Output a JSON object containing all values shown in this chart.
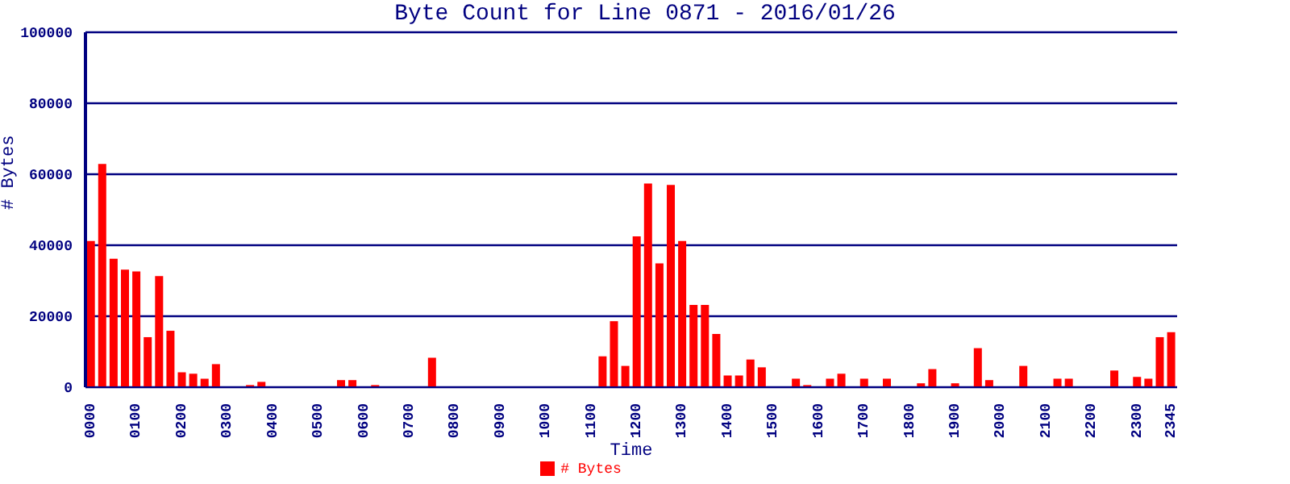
{
  "chart_data": {
    "type": "bar",
    "title": "Byte Count for Line 0871 - 2016/01/26",
    "xlabel": "Time",
    "ylabel": "# Bytes",
    "categories": [
      "0000",
      null,
      null,
      null,
      "0100",
      null,
      null,
      null,
      "0200",
      null,
      null,
      null,
      "0300",
      null,
      null,
      null,
      "0400",
      null,
      null,
      null,
      "0500",
      null,
      null,
      null,
      "0600",
      null,
      null,
      null,
      "0700",
      null,
      null,
      null,
      "0800",
      null,
      null,
      null,
      "0900",
      null,
      null,
      null,
      "1000",
      null,
      null,
      null,
      "1100",
      null,
      null,
      null,
      "1200",
      null,
      null,
      null,
      "1300",
      null,
      null,
      null,
      "1400",
      null,
      null,
      null,
      "1500",
      null,
      null,
      null,
      "1600",
      null,
      null,
      null,
      "1700",
      null,
      null,
      null,
      "1800",
      null,
      null,
      null,
      "1900",
      null,
      null,
      null,
      "2000",
      null,
      null,
      null,
      "2100",
      null,
      null,
      null,
      "2200",
      null,
      null,
      null,
      "2300",
      null,
      null,
      "2345"
    ],
    "series": [
      {
        "name": "# Bytes",
        "color": "#ff0000",
        "values": [
          41200,
          62900,
          36200,
          33100,
          32600,
          14100,
          31300,
          15900,
          4200,
          3800,
          2400,
          6500,
          0,
          0,
          600,
          1500,
          0,
          0,
          0,
          0,
          0,
          0,
          2000,
          2000,
          0,
          600,
          0,
          0,
          0,
          0,
          8300,
          0,
          0,
          0,
          0,
          0,
          0,
          0,
          0,
          0,
          0,
          0,
          0,
          0,
          0,
          8700,
          18600,
          6000,
          42500,
          57400,
          34900,
          57000,
          41200,
          23200,
          23200,
          15000,
          3300,
          3300,
          7800,
          5600,
          0,
          0,
          2400,
          600,
          0,
          2400,
          3800,
          0,
          2400,
          0,
          2400,
          0,
          0,
          1100,
          5100,
          0,
          1100,
          0,
          11000,
          2000,
          0,
          0,
          6000,
          0,
          0,
          2400,
          2400,
          0,
          0,
          0,
          4700,
          0,
          2900,
          2400,
          14100,
          15500
        ]
      }
    ],
    "ylim": [
      0,
      100000
    ],
    "yticks": [
      0,
      20000,
      40000,
      60000,
      80000,
      100000
    ],
    "grid": "y",
    "legend": "bottom"
  }
}
